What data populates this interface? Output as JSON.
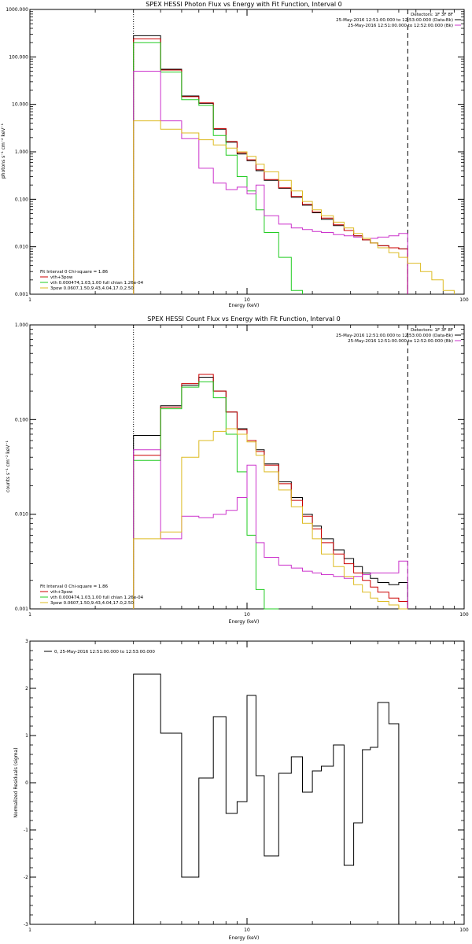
{
  "colors": {
    "black": "#000000",
    "red": "#cc0000",
    "green": "#22cc22",
    "magenta": "#cc33cc",
    "yellow": "#ddbb22"
  },
  "chart_data": [
    {
      "id": "photon",
      "type": "line",
      "title": "SPEX HESSI Photon Flux vs Energy with Fit Function, Interval 0",
      "xlabel": "Energy (keV)",
      "ylabel": "photons s⁻¹ cm⁻² keV⁻¹",
      "xscale": "log",
      "yscale": "log",
      "xlim": [
        1,
        100
      ],
      "ylim": [
        0.001,
        1000
      ],
      "xticks": [
        1,
        10,
        100
      ],
      "xtick_labels": [
        "1",
        "10",
        "100"
      ],
      "yticks": [
        0.001,
        0.01,
        0.1,
        1,
        10,
        100,
        1000
      ],
      "ytick_labels": [
        "0.001",
        "0.010",
        "0.100",
        "1.000",
        "10.000",
        "100.000",
        "1000.000"
      ],
      "vlines": [
        {
          "x": 3,
          "style": "dotted"
        },
        {
          "x": 55,
          "style": "dashed"
        }
      ],
      "legend_topright": [
        {
          "text": "Detectors: 1F 3F 8F",
          "color": "black"
        },
        {
          "text": "25-May-2016 12:51:00.000 to 12:53:00.000 (Data-Bk)",
          "color": "black"
        },
        {
          "text": "25-May-2016 12:51:00.000 to 12:52:00.000 (Bk)",
          "color": "magenta"
        }
      ],
      "legend_bottomleft": [
        {
          "text": "Fit Interval 0   Chi-square = 1.86",
          "color": "black"
        },
        {
          "text": "vth+3pow",
          "color": "red"
        },
        {
          "text": "vth 0.000474,1.03,1.00  full chian 1.26e-04",
          "color": "green"
        },
        {
          "text": "3pow 0.0607,1.50,9.43,4.04,17.0,2.50",
          "color": "yellow"
        }
      ],
      "edges": [
        3,
        4,
        5,
        6,
        7,
        8,
        9,
        10,
        11,
        12,
        14,
        16,
        18,
        20,
        22,
        25,
        28,
        31,
        34,
        37,
        40,
        45,
        50,
        55,
        63,
        71,
        80,
        90,
        100
      ],
      "series": [
        {
          "color": "black",
          "values": [
            280,
            55,
            15,
            10.5,
            3,
            1.6,
            0.9,
            0.65,
            0.4,
            0.25,
            0.17,
            0.11,
            0.075,
            0.052,
            0.038,
            0.028,
            0.022,
            0.017,
            0.014,
            0.012,
            0.0105,
            0.0095,
            0.009
          ]
        },
        {
          "color": "red",
          "values": [
            240,
            53,
            14.5,
            10.8,
            3.1,
            1.65,
            0.95,
            0.68,
            0.42,
            0.26,
            0.175,
            0.115,
            0.078,
            0.054,
            0.04,
            0.029,
            0.022,
            0.017,
            0.014,
            0.012,
            0.0105,
            0.0095,
            0.009
          ]
        },
        {
          "color": "green",
          "values": [
            200,
            48,
            12.5,
            9.5,
            2.2,
            0.85,
            0.3,
            0.15,
            0.06,
            0.02,
            0.006,
            0.0012
          ]
        },
        {
          "color": "magenta",
          "values": [
            50,
            4.5,
            1.9,
            0.45,
            0.22,
            0.16,
            0.18,
            0.13,
            0.2,
            0.045,
            0.03,
            0.025,
            0.023,
            0.021,
            0.02,
            0.018,
            0.017,
            0.016,
            0.015,
            0.015,
            0.016,
            0.017,
            0.019
          ]
        },
        {
          "color": "yellow",
          "values": [
            4.5,
            3,
            2.5,
            1.8,
            1.4,
            1.2,
            1,
            0.8,
            0.55,
            0.38,
            0.25,
            0.15,
            0.09,
            0.06,
            0.045,
            0.033,
            0.025,
            0.019,
            0.015,
            0.012,
            0.0095,
            0.0075,
            0.006,
            0.0045,
            0.003,
            0.002,
            0.0012
          ]
        }
      ]
    },
    {
      "id": "count",
      "type": "line",
      "title": "SPEX HESSI Count Flux vs Energy with Fit Function, Interval 0",
      "xlabel": "Energy (keV)",
      "ylabel": "counts s⁻¹ cm⁻² keV⁻¹",
      "xscale": "log",
      "yscale": "log",
      "xlim": [
        1,
        100
      ],
      "ylim": [
        0.001,
        1
      ],
      "xticks": [
        1,
        10,
        100
      ],
      "xtick_labels": [
        "1",
        "10",
        "100"
      ],
      "yticks": [
        0.001,
        0.01,
        0.1,
        1
      ],
      "ytick_labels": [
        "0.001",
        "0.010",
        "0.100",
        "1.000"
      ],
      "vlines": [
        {
          "x": 3,
          "style": "dotted"
        },
        {
          "x": 55,
          "style": "dashed"
        }
      ],
      "legend_topright": [
        {
          "text": "Detectors: 1F 3F 8F",
          "color": "black"
        },
        {
          "text": "25-May-2016 12:51:00.000 to 12:53:00.000 (Data-Bk)",
          "color": "black"
        },
        {
          "text": "25-May-2016 12:51:00.000 to 12:52:00.000 (Bk)",
          "color": "magenta"
        }
      ],
      "legend_bottomleft": [
        {
          "text": "Fit Interval 0   Chi-square = 1.86",
          "color": "black"
        },
        {
          "text": "vth+3pow",
          "color": "red"
        },
        {
          "text": "vth 0.000474,1.03,1.00  full chian 1.26e-04",
          "color": "green"
        },
        {
          "text": "3pow 0.0607,1.50,9.43,4.04,17.0,2.50",
          "color": "yellow"
        }
      ],
      "edges": [
        3,
        4,
        5,
        6,
        7,
        8,
        9,
        10,
        11,
        12,
        14,
        16,
        18,
        20,
        22,
        25,
        28,
        31,
        34,
        37,
        40,
        45,
        50,
        55
      ],
      "series": [
        {
          "color": "black",
          "values": [
            0.068,
            0.14,
            0.23,
            0.28,
            0.2,
            0.12,
            0.08,
            0.06,
            0.048,
            0.034,
            0.022,
            0.015,
            0.01,
            0.0075,
            0.0055,
            0.0042,
            0.0034,
            0.0028,
            0.0024,
            0.0021,
            0.0019,
            0.0018,
            0.0019
          ]
        },
        {
          "color": "red",
          "values": [
            0.042,
            0.135,
            0.24,
            0.3,
            0.2,
            0.12,
            0.078,
            0.06,
            0.046,
            0.033,
            0.021,
            0.014,
            0.0095,
            0.007,
            0.005,
            0.0038,
            0.003,
            0.0024,
            0.002,
            0.0017,
            0.0015,
            0.0013,
            0.0012
          ]
        },
        {
          "color": "green",
          "values": [
            0.037,
            0.13,
            0.22,
            0.25,
            0.17,
            0.07,
            0.028,
            0.006,
            0.0016,
            0.001
          ]
        },
        {
          "color": "magenta",
          "values": [
            0.048,
            0.0055,
            0.0095,
            0.0092,
            0.01,
            0.011,
            0.015,
            0.033,
            0.005,
            0.0035,
            0.0029,
            0.0027,
            0.0025,
            0.0024,
            0.0023,
            0.0022,
            0.0021,
            0.0022,
            0.0023,
            0.0024,
            0.0024,
            0.0024,
            0.0032
          ]
        },
        {
          "color": "yellow",
          "values": [
            0.0055,
            0.0065,
            0.04,
            0.06,
            0.075,
            0.08,
            0.07,
            0.058,
            0.042,
            0.028,
            0.018,
            0.012,
            0.008,
            0.0055,
            0.0038,
            0.0028,
            0.0022,
            0.0018,
            0.0015,
            0.0013,
            0.0012,
            0.0011,
            0.001
          ]
        }
      ]
    },
    {
      "id": "resid",
      "type": "line",
      "title": "",
      "xlabel": "Energy (keV)",
      "ylabel": "Normalized Residuals (sigma)",
      "xscale": "log",
      "yscale": "linear",
      "xlim": [
        1,
        100
      ],
      "ylim": [
        -3,
        3
      ],
      "xticks": [
        1,
        10,
        100
      ],
      "xtick_labels": [
        "1",
        "10",
        "100"
      ],
      "yticks": [
        -3,
        -2,
        -1,
        0,
        1,
        2,
        3
      ],
      "ytick_labels": [
        "-3",
        "-2",
        "-1",
        "0",
        "1",
        "2",
        "3"
      ],
      "vlines": [],
      "legend_topleft": [
        {
          "text": "0, 25-May-2016 12:51:00.000 to 12:53:00.000",
          "color": "black"
        }
      ],
      "edges": [
        3,
        4,
        5,
        6,
        7,
        8,
        9,
        10,
        11,
        12,
        14,
        16,
        18,
        20,
        22,
        25,
        28,
        31,
        34,
        37,
        40,
        45,
        50,
        55
      ],
      "series": [
        {
          "color": "black",
          "values": [
            2.3,
            1.05,
            -2.0,
            0.1,
            1.4,
            -0.65,
            -0.4,
            1.85,
            0.15,
            -1.55,
            0.2,
            0.55,
            -0.2,
            0.25,
            0.35,
            0.8,
            -1.75,
            -0.85,
            0.7,
            0.75,
            1.7,
            1.25,
            -3.0
          ]
        }
      ]
    }
  ]
}
